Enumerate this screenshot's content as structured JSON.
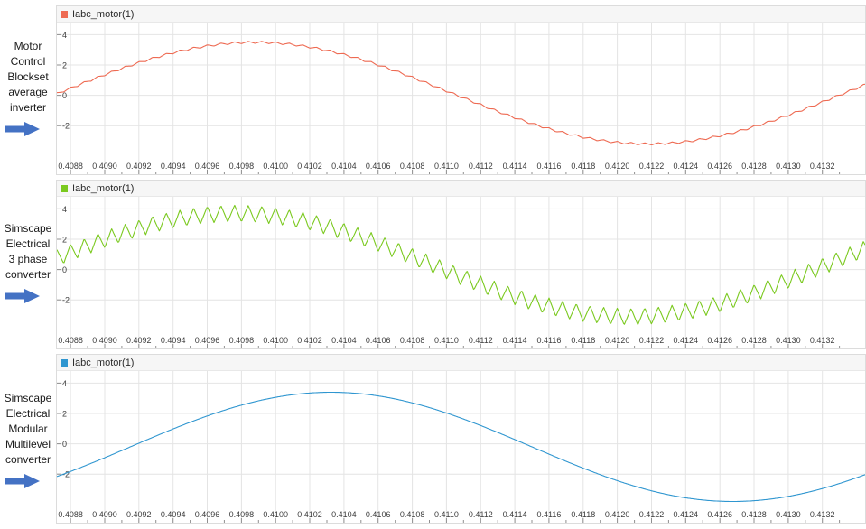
{
  "sidebar": {
    "arrow_color": "#4472c4",
    "groups": [
      {
        "lines": [
          "Motor",
          "Control",
          "Blockset",
          "average",
          "inverter"
        ]
      },
      {
        "lines": [
          "Simscape",
          "Electrical",
          "3 phase",
          "converter"
        ]
      },
      {
        "lines": [
          "Simscape",
          "Electrical",
          "Modular",
          "Multilevel",
          "converter"
        ]
      }
    ]
  },
  "chart_data": [
    {
      "type": "line",
      "title": "",
      "legend_position": "top-left",
      "grid": true,
      "x_ticks": [
        0.4088,
        0.409,
        0.4092,
        0.4094,
        0.4096,
        0.4098,
        0.41,
        0.4102,
        0.4104,
        0.4106,
        0.4108,
        0.411,
        0.4112,
        0.4114,
        0.4116,
        0.4118,
        0.412,
        0.4122,
        0.4124,
        0.4126,
        0.4128,
        0.413,
        0.4132
      ],
      "y_ticks": [
        -2,
        0,
        2,
        4
      ],
      "x_range": [
        0.40872,
        0.41345
      ],
      "y_range": [
        -5.2,
        4.8
      ],
      "series": [
        {
          "name": "Iabc_motor(1)",
          "color": "#ee6a52",
          "waveform": "sine",
          "amplitude": 3.35,
          "offset": 0.15,
          "period_s": 0.0046,
          "zero_crossing_s": 0.40873,
          "ripple_amplitude": 0.07,
          "ripple_period_s": 8e-05
        }
      ]
    },
    {
      "type": "line",
      "title": "",
      "legend_position": "top-left",
      "grid": true,
      "x_ticks": [
        0.4088,
        0.409,
        0.4092,
        0.4094,
        0.4096,
        0.4098,
        0.41,
        0.4102,
        0.4104,
        0.4106,
        0.4108,
        0.411,
        0.4112,
        0.4114,
        0.4116,
        0.4118,
        0.412,
        0.4122,
        0.4124,
        0.4126,
        0.4128,
        0.413,
        0.4132
      ],
      "y_ticks": [
        -2,
        0,
        2,
        4
      ],
      "x_range": [
        0.40872,
        0.41345
      ],
      "y_range": [
        -5.2,
        4.8
      ],
      "series": [
        {
          "name": "Iabc_motor(1)",
          "color": "#7ac91e",
          "waveform": "sine",
          "amplitude": 3.4,
          "offset": 0.3,
          "period_s": 0.0046,
          "zero_crossing_s": 0.40862,
          "ripple_amplitude": 0.55,
          "ripple_period_s": 8e-05
        }
      ]
    },
    {
      "type": "line",
      "title": "",
      "legend_position": "top-left",
      "grid": true,
      "x_ticks": [
        0.4088,
        0.409,
        0.4092,
        0.4094,
        0.4096,
        0.4098,
        0.41,
        0.4102,
        0.4104,
        0.4106,
        0.4108,
        0.411,
        0.4112,
        0.4114,
        0.4116,
        0.4118,
        0.412,
        0.4122,
        0.4124,
        0.4126,
        0.4128,
        0.413,
        0.4132
      ],
      "y_ticks": [
        -2,
        0,
        2,
        4
      ],
      "x_range": [
        0.40872,
        0.41345
      ],
      "y_range": [
        -5.2,
        4.8
      ],
      "series": [
        {
          "name": "Iabc_motor(1)",
          "color": "#2f96d0",
          "waveform": "sine",
          "amplitude": 3.6,
          "offset": -0.2,
          "period_s": 0.0047,
          "zero_crossing_s": 0.40915,
          "ripple_amplitude": 0,
          "ripple_period_s": 8e-05
        }
      ]
    }
  ]
}
